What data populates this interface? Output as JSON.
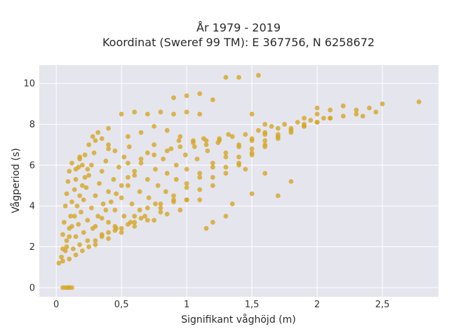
{
  "chart_data": {
    "type": "scatter",
    "title": "År 1979 - 2019",
    "subtitle": "Koordinat (Sweref 99 TM): E 367756, N 6258672",
    "xlabel": "Signifikant våghöjd (m)",
    "ylabel": "Vågperiod (s)",
    "xlim": [
      -0.13,
      2.93
    ],
    "ylim": [
      -0.45,
      10.9
    ],
    "x_ticks": [
      0,
      0.5,
      1,
      1.5,
      2,
      2.5
    ],
    "x_tick_labels": [
      "0",
      "0,5",
      "1",
      "1,5",
      "2",
      "2,5"
    ],
    "y_ticks": [
      0,
      2,
      4,
      6,
      8,
      10
    ],
    "y_tick_labels": [
      "0",
      "2",
      "4",
      "6",
      "8",
      "10"
    ],
    "grid": true,
    "legend": "none",
    "marker_color": "#d4a623",
    "plot_background": "#e5e5ee",
    "series": [
      {
        "points": [
          [
            0.02,
            1.2
          ],
          [
            0.04,
            1.5
          ],
          [
            0.05,
            1.9
          ],
          [
            0.05,
            2.6
          ],
          [
            0.06,
            3.2
          ],
          [
            0.07,
            4.0
          ],
          [
            0.08,
            4.6
          ],
          [
            0.09,
            5.2
          ],
          [
            0.1,
            5.7
          ],
          [
            0.12,
            6.1
          ],
          [
            0.05,
            1.3
          ],
          [
            0.07,
            1.8
          ],
          [
            0.08,
            2.3
          ],
          [
            0.1,
            2.9
          ],
          [
            0.11,
            3.5
          ],
          [
            0.12,
            4.2
          ],
          [
            0.14,
            4.8
          ],
          [
            0.15,
            5.3
          ],
          [
            0.17,
            5.9
          ],
          [
            0.18,
            6.4
          ],
          [
            0.1,
            1.4
          ],
          [
            0.13,
            1.9
          ],
          [
            0.15,
            2.5
          ],
          [
            0.17,
            3.1
          ],
          [
            0.19,
            3.7
          ],
          [
            0.21,
            4.3
          ],
          [
            0.23,
            4.9
          ],
          [
            0.25,
            5.5
          ],
          [
            0.27,
            6.0
          ],
          [
            0.29,
            6.6
          ],
          [
            0.15,
            1.6
          ],
          [
            0.18,
            2.1
          ],
          [
            0.21,
            2.7
          ],
          [
            0.24,
            3.3
          ],
          [
            0.27,
            3.9
          ],
          [
            0.3,
            4.5
          ],
          [
            0.33,
            5.1
          ],
          [
            0.35,
            5.7
          ],
          [
            0.38,
            6.2
          ],
          [
            0.4,
            6.8
          ],
          [
            0.2,
            1.8
          ],
          [
            0.24,
            2.3
          ],
          [
            0.28,
            2.9
          ],
          [
            0.32,
            3.5
          ],
          [
            0.36,
            4.1
          ],
          [
            0.4,
            4.7
          ],
          [
            0.44,
            5.3
          ],
          [
            0.48,
            5.9
          ],
          [
            0.52,
            6.4
          ],
          [
            0.56,
            6.9
          ],
          [
            0.3,
            2.1
          ],
          [
            0.35,
            2.6
          ],
          [
            0.4,
            3.2
          ],
          [
            0.45,
            3.8
          ],
          [
            0.5,
            4.4
          ],
          [
            0.55,
            5.0
          ],
          [
            0.6,
            5.5
          ],
          [
            0.65,
            6.1
          ],
          [
            0.7,
            6.6
          ],
          [
            0.75,
            7.0
          ],
          [
            0.4,
            2.4
          ],
          [
            0.46,
            2.9
          ],
          [
            0.52,
            3.5
          ],
          [
            0.58,
            4.1
          ],
          [
            0.64,
            4.7
          ],
          [
            0.7,
            5.3
          ],
          [
            0.76,
            5.8
          ],
          [
            0.82,
            6.3
          ],
          [
            0.88,
            6.8
          ],
          [
            0.94,
            7.2
          ],
          [
            0.5,
            2.7
          ],
          [
            0.57,
            3.2
          ],
          [
            0.64,
            3.8
          ],
          [
            0.71,
            4.4
          ],
          [
            0.78,
            5.0
          ],
          [
            0.85,
            5.6
          ],
          [
            0.92,
            6.0
          ],
          [
            0.99,
            6.5
          ],
          [
            1.06,
            6.9
          ],
          [
            1.13,
            7.3
          ],
          [
            0.6,
            3.0
          ],
          [
            0.68,
            3.5
          ],
          [
            0.76,
            4.1
          ],
          [
            0.84,
            4.7
          ],
          [
            0.92,
            5.3
          ],
          [
            1.0,
            5.8
          ],
          [
            1.08,
            6.3
          ],
          [
            1.16,
            6.7
          ],
          [
            1.24,
            7.1
          ],
          [
            1.32,
            7.5
          ],
          [
            0.7,
            3.3
          ],
          [
            0.8,
            3.9
          ],
          [
            0.9,
            4.5
          ],
          [
            1.0,
            5.1
          ],
          [
            1.1,
            5.6
          ],
          [
            1.2,
            6.1
          ],
          [
            1.3,
            6.6
          ],
          [
            1.4,
            7.0
          ],
          [
            1.5,
            7.3
          ],
          [
            1.6,
            7.6
          ],
          [
            0.8,
            3.7
          ],
          [
            0.9,
            4.3
          ],
          [
            1.0,
            4.9
          ],
          [
            1.1,
            5.4
          ],
          [
            1.2,
            5.9
          ],
          [
            1.3,
            6.4
          ],
          [
            1.4,
            6.9
          ],
          [
            1.5,
            7.2
          ],
          [
            1.6,
            7.5
          ],
          [
            1.7,
            7.8
          ],
          [
            1.0,
            4.3
          ],
          [
            1.1,
            4.8
          ],
          [
            1.2,
            5.4
          ],
          [
            1.3,
            5.9
          ],
          [
            1.4,
            6.4
          ],
          [
            1.5,
            6.8
          ],
          [
            1.6,
            7.2
          ],
          [
            1.7,
            7.5
          ],
          [
            1.8,
            7.8
          ],
          [
            1.9,
            8.0
          ],
          [
            1.2,
            5.0
          ],
          [
            1.3,
            5.6
          ],
          [
            1.4,
            6.1
          ],
          [
            1.5,
            6.6
          ],
          [
            1.6,
            7.0
          ],
          [
            1.7,
            7.4
          ],
          [
            1.8,
            7.7
          ],
          [
            1.9,
            7.9
          ],
          [
            2.0,
            8.1
          ],
          [
            2.1,
            8.3
          ],
          [
            1.4,
            6.0
          ],
          [
            1.5,
            6.5
          ],
          [
            1.6,
            6.9
          ],
          [
            1.7,
            7.3
          ],
          [
            1.8,
            7.6
          ],
          [
            1.9,
            7.9
          ],
          [
            2.0,
            8.1
          ],
          [
            2.1,
            8.3
          ],
          [
            2.2,
            8.4
          ],
          [
            2.3,
            8.5
          ],
          [
            0.05,
            0.0
          ],
          [
            0.07,
            0.0
          ],
          [
            0.09,
            0.0
          ],
          [
            0.1,
            0.0
          ],
          [
            0.12,
            0.0
          ],
          [
            0.3,
            7.2
          ],
          [
            0.4,
            7.8
          ],
          [
            0.5,
            8.5
          ],
          [
            0.6,
            8.6
          ],
          [
            0.7,
            8.5
          ],
          [
            0.8,
            8.6
          ],
          [
            0.9,
            8.5
          ],
          [
            1.0,
            8.6
          ],
          [
            1.1,
            8.5
          ],
          [
            0.9,
            9.3
          ],
          [
            1.0,
            9.4
          ],
          [
            1.1,
            9.5
          ],
          [
            1.2,
            9.2
          ],
          [
            1.3,
            10.3
          ],
          [
            1.4,
            10.3
          ],
          [
            1.5,
            8.5
          ],
          [
            1.55,
            10.4
          ],
          [
            1.6,
            8.0
          ],
          [
            2.4,
            8.8
          ],
          [
            2.5,
            9.0
          ],
          [
            2.45,
            8.6
          ],
          [
            2.78,
            9.1
          ],
          [
            2.2,
            8.9
          ],
          [
            2.3,
            8.7
          ],
          [
            2.35,
            8.4
          ],
          [
            2.0,
            8.8
          ],
          [
            2.1,
            8.7
          ],
          [
            1.8,
            5.2
          ],
          [
            1.7,
            4.5
          ],
          [
            1.5,
            4.6
          ],
          [
            1.6,
            5.6
          ],
          [
            1.45,
            5.8
          ],
          [
            1.3,
            3.5
          ],
          [
            1.2,
            3.2
          ],
          [
            1.35,
            4.1
          ],
          [
            1.15,
            2.9
          ],
          [
            0.15,
            5.8
          ],
          [
            0.18,
            6.3
          ],
          [
            0.2,
            6.0
          ],
          [
            0.22,
            6.5
          ],
          [
            0.25,
            7.0
          ],
          [
            0.28,
            7.4
          ],
          [
            0.32,
            7.6
          ],
          [
            0.35,
            7.3
          ],
          [
            0.4,
            7.0
          ],
          [
            0.45,
            6.7
          ],
          [
            0.55,
            7.4
          ],
          [
            0.65,
            7.6
          ],
          [
            0.75,
            7.9
          ],
          [
            0.85,
            7.7
          ],
          [
            0.95,
            7.4
          ],
          [
            1.05,
            7.2
          ],
          [
            1.15,
            7.0
          ],
          [
            1.25,
            7.2
          ],
          [
            0.6,
            3.5
          ],
          [
            0.7,
            3.9
          ],
          [
            0.8,
            4.1
          ],
          [
            0.9,
            4.2
          ],
          [
            1.0,
            4.3
          ],
          [
            1.1,
            4.3
          ],
          [
            0.95,
            3.8
          ],
          [
            0.85,
            3.6
          ],
          [
            0.75,
            3.3
          ],
          [
            0.3,
            3.0
          ],
          [
            0.35,
            3.4
          ],
          [
            0.38,
            3.8
          ],
          [
            0.42,
            4.2
          ],
          [
            0.46,
            4.6
          ],
          [
            0.5,
            5.0
          ],
          [
            0.55,
            5.4
          ],
          [
            0.6,
            5.7
          ],
          [
            0.45,
            3.0
          ],
          [
            0.25,
            2.0
          ],
          [
            0.3,
            2.3
          ],
          [
            0.35,
            2.5
          ],
          [
            0.4,
            2.7
          ],
          [
            0.45,
            2.8
          ],
          [
            0.5,
            2.9
          ],
          [
            0.55,
            3.1
          ],
          [
            0.6,
            3.2
          ],
          [
            0.65,
            3.4
          ],
          [
            0.08,
            2.0
          ],
          [
            0.1,
            2.5
          ],
          [
            0.12,
            3.0
          ],
          [
            0.14,
            3.5
          ],
          [
            0.16,
            4.0
          ],
          [
            0.18,
            4.5
          ],
          [
            0.2,
            5.0
          ],
          [
            0.22,
            5.4
          ],
          [
            0.24,
            5.8
          ],
          [
            1.9,
            8.3
          ],
          [
            2.0,
            8.5
          ],
          [
            2.05,
            8.3
          ],
          [
            1.95,
            8.2
          ],
          [
            1.85,
            8.1
          ],
          [
            1.75,
            8.0
          ],
          [
            1.65,
            7.9
          ],
          [
            1.55,
            7.7
          ],
          [
            1.45,
            7.5
          ],
          [
            1.35,
            7.4
          ],
          [
            1.25,
            7.3
          ],
          [
            1.15,
            7.2
          ],
          [
            1.05,
            7.1
          ],
          [
            0.95,
            6.9
          ],
          [
            0.85,
            6.7
          ],
          [
            0.75,
            6.5
          ],
          [
            0.65,
            6.3
          ],
          [
            0.55,
            6.1
          ]
        ]
      }
    ]
  }
}
